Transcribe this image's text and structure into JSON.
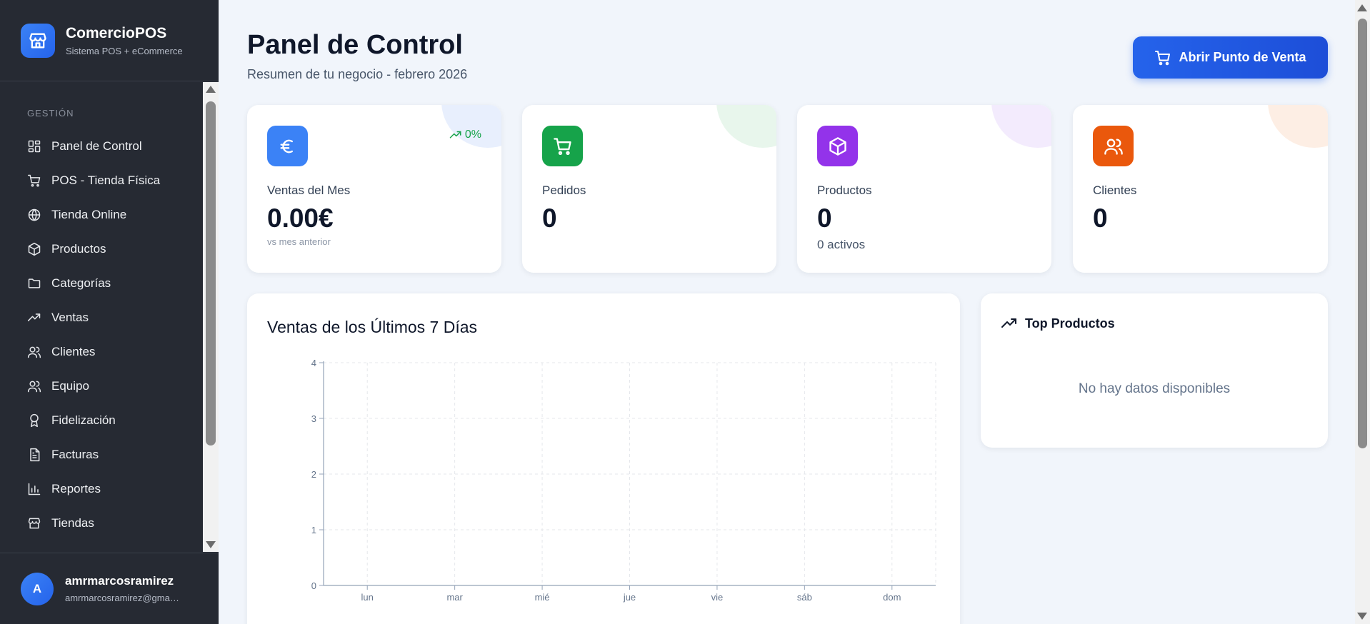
{
  "brand": {
    "title": "ComercioPOS",
    "subtitle": "Sistema POS + eCommerce",
    "icon": "store-icon"
  },
  "sidebar": {
    "section": "GESTIÓN",
    "items": [
      {
        "label": "Panel de Control",
        "icon": "dashboard-icon"
      },
      {
        "label": "POS - Tienda Física",
        "icon": "cart-icon"
      },
      {
        "label": "Tienda Online",
        "icon": "globe-icon"
      },
      {
        "label": "Productos",
        "icon": "box-icon"
      },
      {
        "label": "Categorías",
        "icon": "folder-icon"
      },
      {
        "label": "Ventas",
        "icon": "trending-up-icon"
      },
      {
        "label": "Clientes",
        "icon": "users-icon"
      },
      {
        "label": "Equipo",
        "icon": "team-icon"
      },
      {
        "label": "Fidelización",
        "icon": "award-icon"
      },
      {
        "label": "Facturas",
        "icon": "invoice-icon"
      },
      {
        "label": "Reportes",
        "icon": "bar-chart-icon"
      },
      {
        "label": "Tiendas",
        "icon": "store-icon"
      }
    ]
  },
  "user": {
    "initial": "A",
    "name": "amrmarcosramirez",
    "email": "amrmarcosramirez@gmail.com"
  },
  "header": {
    "title": "Panel de Control",
    "subtitle": "Resumen de tu negocio - febrero 2026",
    "pos_button": "Abrir Punto de Venta"
  },
  "stats": [
    {
      "label": "Ventas del Mes",
      "value": "0.00€",
      "trend": "0%",
      "foot": "vs mes anterior",
      "icon": "euro-icon",
      "color": "#3b82f6"
    },
    {
      "label": "Pedidos",
      "value": "0",
      "icon": "cart-icon",
      "color": "#16a34a"
    },
    {
      "label": "Productos",
      "value": "0",
      "foot": "0 activos",
      "icon": "box-icon",
      "color": "#9333ea"
    },
    {
      "label": "Clientes",
      "value": "0",
      "icon": "users-icon",
      "color": "#ea580c"
    }
  ],
  "chart_data": {
    "type": "line",
    "title": "Ventas de los Últimos 7 Días",
    "categories": [
      "lun",
      "mar",
      "mié",
      "jue",
      "vie",
      "sáb",
      "dom"
    ],
    "series": [
      {
        "values": [
          0,
          0,
          0,
          0,
          0,
          0,
          0
        ]
      }
    ],
    "ylim": [
      0,
      4
    ],
    "yticks": [
      0,
      1,
      2,
      3,
      4
    ],
    "grid": true
  },
  "top_products": {
    "title": "Top Productos",
    "empty": "No hay datos disponibles"
  }
}
